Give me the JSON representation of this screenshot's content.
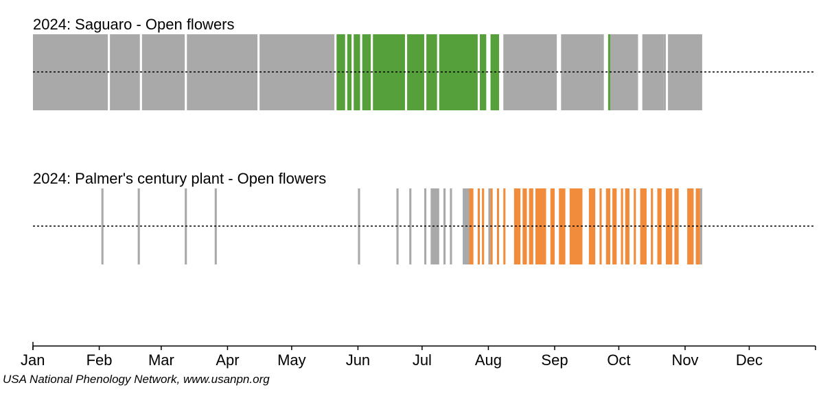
{
  "chart_data": {
    "type": "timeline",
    "year": 2024,
    "x_unit": "day of year",
    "x_range": [
      1,
      366
    ],
    "month_labels": [
      "Jan",
      "Feb",
      "Mar",
      "Apr",
      "May",
      "Jun",
      "Jul",
      "Aug",
      "Sep",
      "Oct",
      "Nov",
      "Dec"
    ],
    "colors": {
      "no_observation_yes": "#a9a9a9",
      "baseline": "#000000"
    },
    "rows": [
      {
        "title": "2024: Saguaro - Open flowers",
        "yes_color": "#56a03c",
        "no_days": [
          [
            1,
            35
          ],
          [
            37,
            50
          ],
          [
            52,
            71
          ],
          [
            73,
            105
          ],
          [
            107,
            141
          ],
          [
            221,
            245
          ],
          [
            248,
            267
          ],
          [
            271,
            283
          ],
          [
            286,
            295
          ],
          [
            296,
            296
          ],
          [
            298,
            313
          ]
        ],
        "yes_days": [
          [
            143,
            146
          ],
          [
            148,
            149
          ],
          [
            151,
            153
          ],
          [
            155,
            158
          ],
          [
            160,
            174
          ],
          [
            176,
            183
          ],
          [
            185,
            189
          ],
          [
            191,
            208
          ],
          [
            210,
            212
          ],
          [
            215,
            218
          ],
          [
            270,
            270
          ]
        ]
      },
      {
        "title": "2024: Palmer's century plant - Open flowers",
        "yes_color": "#f08c3c",
        "no_days": [
          [
            33,
            33
          ],
          [
            50,
            50
          ],
          [
            72,
            72
          ],
          [
            86,
            86
          ],
          [
            153,
            153
          ],
          [
            171,
            171
          ],
          [
            177,
            177
          ],
          [
            184,
            184
          ],
          [
            187,
            190
          ],
          [
            193,
            193
          ],
          [
            196,
            196
          ],
          [
            202,
            205
          ],
          [
            214,
            214
          ],
          [
            227,
            227
          ],
          [
            313,
            313
          ]
        ],
        "yes_days": [
          [
            205,
            206
          ],
          [
            209,
            209
          ],
          [
            211,
            211
          ],
          [
            215,
            215
          ],
          [
            218,
            218
          ],
          [
            221,
            221
          ],
          [
            226,
            228
          ],
          [
            230,
            231
          ],
          [
            233,
            234
          ],
          [
            236,
            240
          ],
          [
            243,
            244
          ],
          [
            247,
            249
          ],
          [
            252,
            257
          ],
          [
            261,
            263
          ],
          [
            266,
            266
          ],
          [
            269,
            270
          ],
          [
            272,
            273
          ],
          [
            276,
            276
          ],
          [
            278,
            279
          ],
          [
            282,
            282
          ],
          [
            285,
            287
          ],
          [
            290,
            290
          ],
          [
            293,
            294
          ],
          [
            297,
            299
          ],
          [
            301,
            302
          ],
          [
            307,
            309
          ],
          [
            311,
            312
          ]
        ]
      }
    ],
    "credit": "USA National Phenology Network, www.usanpn.org"
  }
}
